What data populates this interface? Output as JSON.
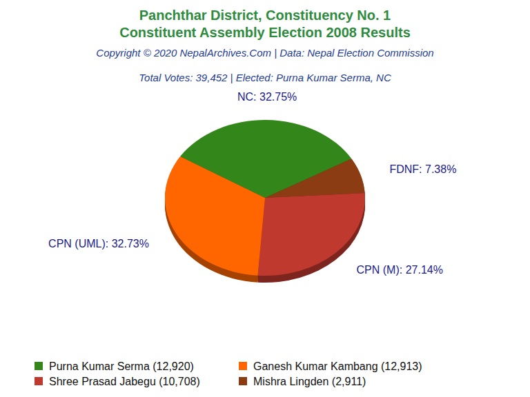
{
  "chart_data": {
    "type": "pie",
    "title": "Panchthar District, Constituency No. 1",
    "subtitle": "Constituent Assembly Election 2008 Results",
    "notes": [
      "Copyright © 2020 NepalArchives.Com | Data: Nepal Election Commission",
      "Total Votes: 39,452 | Elected: Purna Kumar Serma, NC"
    ],
    "categories": [
      "NC",
      "FDNF",
      "CPN (M)",
      "CPN (UML)"
    ],
    "values": [
      32.75,
      7.38,
      27.14,
      32.73
    ],
    "value_labels": [
      "32.75%",
      "7.38%",
      "27.14%",
      "32.73%"
    ],
    "colors": [
      "#33871a",
      "#8b3c12",
      "#c0392e",
      "#ff6600"
    ],
    "data_labels": true,
    "legend": "bottom",
    "legend_entries": [
      {
        "label": "Purna Kumar Serma (12,920)",
        "color": "#33871a"
      },
      {
        "label": "Ganesh Kumar Kambang (12,913)",
        "color": "#ff6600"
      },
      {
        "label": "Shree Prasad Jabegu (10,708)",
        "color": "#c0392e"
      },
      {
        "label": "Mishra Lingden (2,911)",
        "color": "#8b3c12"
      }
    ]
  }
}
